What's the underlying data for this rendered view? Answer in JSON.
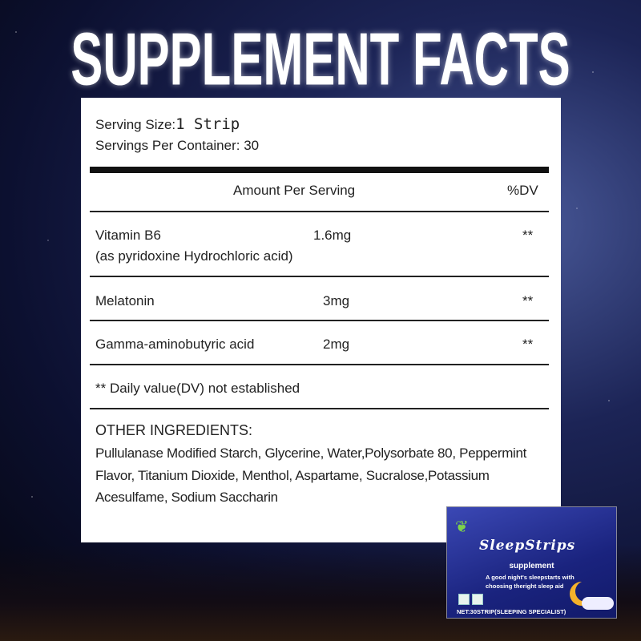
{
  "title": "SUPPLEMENT FACTS",
  "serving": {
    "size_label": "Serving Size:",
    "size_value": "1 Strip",
    "per_container": "Servings Per Container: 30"
  },
  "header": {
    "amount": "Amount Per Serving",
    "dv": "%DV"
  },
  "rows": [
    {
      "name": "Vitamin B6",
      "note": "(as pyridoxine Hydrochloric acid)",
      "amount": "1.6mg",
      "dv": "**"
    },
    {
      "name": "Melatonin",
      "amount": "3mg",
      "dv": "**"
    },
    {
      "name": "Gamma-aminobutyric acid",
      "amount": "2mg",
      "dv": "**"
    }
  ],
  "footnote": "** Daily value(DV) not established",
  "other": {
    "heading": "OTHER INGREDIENTS:",
    "lines": [
      "Pullulanase Modified Starch, Glycerine, Water,Polysorbate 80, Peppermint",
      "Flavor, Titanium Dioxide, Menthol, Aspartame, Sucralose,Potassium",
      "Acesulfame, Sodium Saccharin"
    ]
  },
  "product": {
    "brand": "SleepStrips",
    "subtitle": "supplement",
    "tagline": [
      "A good night's sleepstarts with",
      "choosing theright sleep aid"
    ],
    "net": "NET:30STRIP(SLEEPING SPECIALIST)"
  }
}
